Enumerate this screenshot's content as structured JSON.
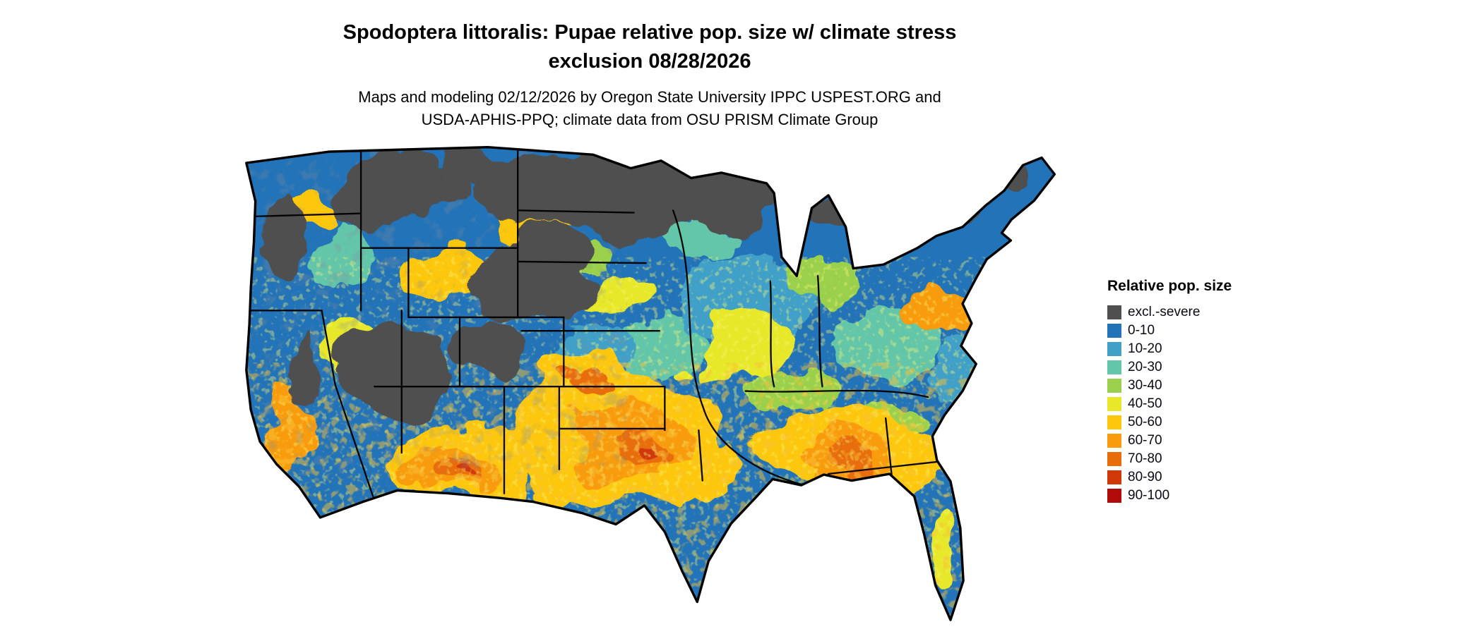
{
  "title": "Spodoptera littoralis: Pupae relative pop. size w/ climate stress\nexclusion 08/28/2026",
  "subtitle": "Maps and modeling 02/12/2026 by Oregon State University IPPC USPEST.ORG and\nUSDA-APHIS-PPQ; climate data from OSU PRISM Climate Group",
  "map": {
    "region": "Continental United States"
  },
  "legend": {
    "title": "Relative pop. size",
    "items": [
      {
        "label": "excl.-severe",
        "color": "#4f4f4f"
      },
      {
        "label": "0-10",
        "color": "#2273b8"
      },
      {
        "label": "10-20",
        "color": "#41a0c8"
      },
      {
        "label": "20-30",
        "color": "#63c6a9"
      },
      {
        "label": "30-40",
        "color": "#9ad04c"
      },
      {
        "label": "40-50",
        "color": "#e8e829"
      },
      {
        "label": "50-60",
        "color": "#fdc70c"
      },
      {
        "label": "60-70",
        "color": "#f89c0b"
      },
      {
        "label": "70-80",
        "color": "#e86d09"
      },
      {
        "label": "80-90",
        "color": "#d13808"
      },
      {
        "label": "90-100",
        "color": "#b00b09"
      }
    ]
  }
}
